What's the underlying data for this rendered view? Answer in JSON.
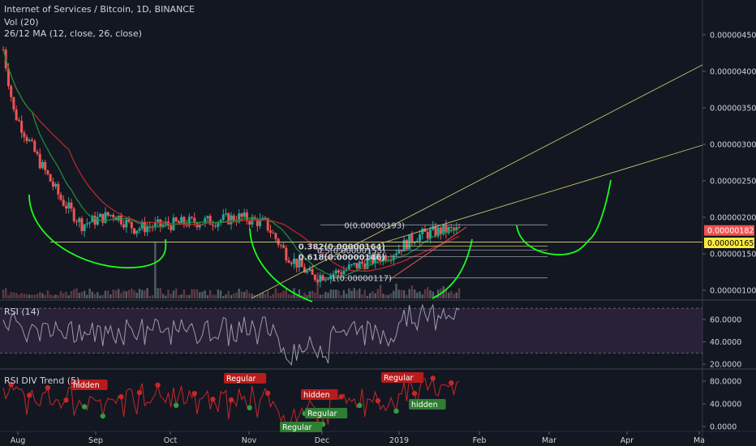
{
  "header": {
    "symbol": "Internet of Services / Bitcoin, 1D, BINANCE",
    "vol": "Vol (20)",
    "ma": "26/12 MA (12, close, 26, close)"
  },
  "panes": {
    "rsi_title": "RSI (14)",
    "div_title": "RSI DIV Trend (5)"
  },
  "colors": {
    "bg": "#131722",
    "up": "#26a69a",
    "down": "#ef5350",
    "ma_fast": "#1e8c3a",
    "ma_slow": "#b22a2a",
    "cup": "#1aff1a",
    "trend": "#c9c26a",
    "fib": "#9598a1",
    "rsi_line": "#9b9ea6",
    "rsi_band": "#3a2a4a",
    "div_line": "#c62828"
  },
  "chart_data": [
    {
      "type": "candlestick",
      "title": "Internet of Services / Bitcoin, 1D, BINANCE",
      "x_ticks": [
        "Aug",
        "Sep",
        "Oct",
        "Nov",
        "Dec",
        "2019",
        "Feb",
        "Mar",
        "Apr",
        "Ma"
      ],
      "y_ticks": [
        "0.00000100",
        "0.00000150",
        "0.00000200",
        "0.00000250",
        "0.00000300",
        "0.00000350",
        "0.00000400",
        "0.00000450"
      ],
      "ylim": [
        9.5e-07,
        4.9e-06
      ],
      "price_tags": [
        {
          "label": "0.00000182",
          "value": 1.82e-06,
          "bg": "#ef5350",
          "fg": "#ffffff"
        },
        {
          "label": "0.00000165",
          "value": 1.65e-06,
          "bg": "#ffeb3b",
          "fg": "#000000"
        }
      ],
      "fib_levels": [
        {
          "label": "0(0.00000193)",
          "value": 1.93e-06
        },
        {
          "label": "0.382(0.00000164)",
          "value": 1.64e-06
        },
        {
          "label": "0.5(0.00000155)",
          "value": 1.55e-06
        },
        {
          "label": "0.618(0.00000146)",
          "value": 1.46e-06
        },
        {
          "label": "1(0.00000117)",
          "value": 1.17e-06
        }
      ],
      "support_level": 1.65e-06
    },
    {
      "type": "line",
      "title": "RSI (14)",
      "y_ticks": [
        "20.0000",
        "40.0000",
        "60.0000"
      ],
      "ylim": [
        15,
        75
      ],
      "band": [
        30,
        70
      ]
    },
    {
      "type": "line",
      "title": "RSI DIV Trend (5)",
      "y_ticks": [
        "0.0000",
        "40.0000",
        "80.0000"
      ],
      "ylim": [
        -3,
        90
      ],
      "labels": [
        {
          "text": "hidden",
          "kind": "bear"
        },
        {
          "text": "Regular",
          "kind": "bear"
        },
        {
          "text": "hidden",
          "kind": "bear"
        },
        {
          "text": "Regular",
          "kind": "bear"
        },
        {
          "text": "Regular",
          "kind": "bull"
        },
        {
          "text": "Regular",
          "kind": "bull"
        },
        {
          "text": "hidden",
          "kind": "bull"
        }
      ]
    }
  ]
}
